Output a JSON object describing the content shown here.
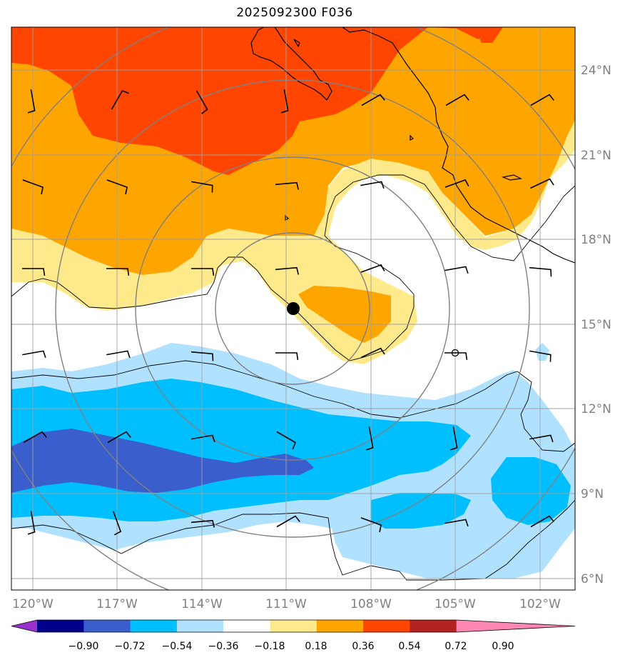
{
  "title": "2025092300 F036",
  "longitude_labels": [
    "120°W",
    "117°W",
    "114°W",
    "111°W",
    "108°W",
    "105°W",
    "102°W"
  ],
  "latitude_labels": [
    "24°N",
    "21°N",
    "18°N",
    "15°N",
    "12°N",
    "9°N",
    "6°N"
  ],
  "colorbar": {
    "ticks": [
      "−0.90",
      "−0.72",
      "−0.54",
      "−0.36",
      "−0.18",
      "0.18",
      "0.36",
      "0.54",
      "0.72",
      "0.90"
    ],
    "colors": [
      "#9932cc",
      "#00008b",
      "#3a5fcd",
      "#00bfff",
      "#b0e2ff",
      "#ffffff",
      "#ffea8b",
      "#ffa500",
      "#ff4500",
      "#b22222",
      "#ff87b4"
    ]
  },
  "colors": {
    "grid": "#a0a0a0",
    "coast": "#000000",
    "circle": "#808080",
    "dark_red": "#ff4500",
    "orange": "#ffa500",
    "light_yellow": "#ffea8b",
    "light_blue": "#b0e2ff",
    "cyan": "#00bfff",
    "royal_blue": "#3a5fcd"
  },
  "markers": {
    "storm_center": "filled-circle",
    "open_circle": "hollow-circle"
  }
}
